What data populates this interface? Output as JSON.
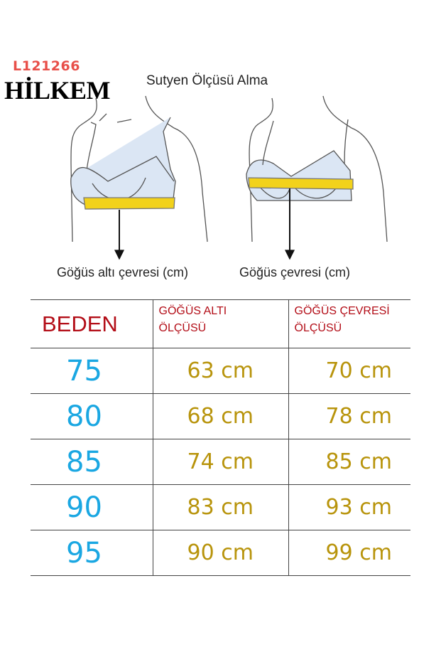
{
  "product_code": "L121266",
  "brand": "HİLKEM",
  "title": "Sutyen Ölçüsü Alma",
  "captions": [
    "Göğüs altı çevresi (cm)",
    "Göğüs çevresi (cm)"
  ],
  "colors": {
    "header": "#b30d17",
    "size": "#1aa7e2",
    "value": "#b8940c",
    "code": "#e8504a",
    "tape": "#f2d21b",
    "bra": "#dbe6f4"
  },
  "table": {
    "headers": [
      "BEDEN",
      "GÖĞÜS ALTI ÖLÇÜSÜ",
      "GÖĞÜS ÇEVRESİ ÖLÇÜSÜ"
    ],
    "header_lines": [
      [
        "GÖĞÜS ALTI",
        "ÖLÇÜSÜ"
      ],
      [
        "GÖĞÜS ÇEVRESİ",
        "ÖLÇÜSÜ"
      ]
    ],
    "rows": [
      [
        "75",
        "63 cm",
        "70 cm"
      ],
      [
        "80",
        "68 cm",
        "78 cm"
      ],
      [
        "85",
        "74 cm",
        "85 cm"
      ],
      [
        "90",
        "83 cm",
        "93 cm"
      ],
      [
        "95",
        "90 cm",
        "99 cm"
      ]
    ]
  }
}
